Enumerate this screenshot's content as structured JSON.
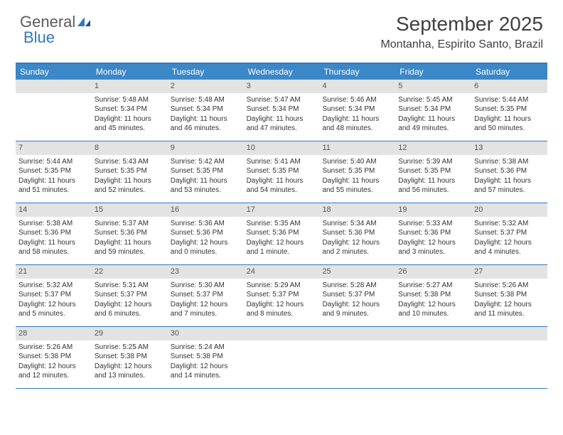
{
  "brand": {
    "word1": "General",
    "word2": "Blue"
  },
  "title": "September 2025",
  "location": "Montanha, Espirito Santo, Brazil",
  "colors": {
    "header_bar": "#3b87c8",
    "border": "#2e78c0",
    "daynum_bg": "#e3e3e3",
    "text": "#333333",
    "title_text": "#404040"
  },
  "days_of_week": [
    "Sunday",
    "Monday",
    "Tuesday",
    "Wednesday",
    "Thursday",
    "Friday",
    "Saturday"
  ],
  "weeks": [
    [
      null,
      {
        "n": "1",
        "sr": "Sunrise: 5:48 AM",
        "ss": "Sunset: 5:34 PM",
        "d1": "Daylight: 11 hours",
        "d2": "and 45 minutes."
      },
      {
        "n": "2",
        "sr": "Sunrise: 5:48 AM",
        "ss": "Sunset: 5:34 PM",
        "d1": "Daylight: 11 hours",
        "d2": "and 46 minutes."
      },
      {
        "n": "3",
        "sr": "Sunrise: 5:47 AM",
        "ss": "Sunset: 5:34 PM",
        "d1": "Daylight: 11 hours",
        "d2": "and 47 minutes."
      },
      {
        "n": "4",
        "sr": "Sunrise: 5:46 AM",
        "ss": "Sunset: 5:34 PM",
        "d1": "Daylight: 11 hours",
        "d2": "and 48 minutes."
      },
      {
        "n": "5",
        "sr": "Sunrise: 5:45 AM",
        "ss": "Sunset: 5:34 PM",
        "d1": "Daylight: 11 hours",
        "d2": "and 49 minutes."
      },
      {
        "n": "6",
        "sr": "Sunrise: 5:44 AM",
        "ss": "Sunset: 5:35 PM",
        "d1": "Daylight: 11 hours",
        "d2": "and 50 minutes."
      }
    ],
    [
      {
        "n": "7",
        "sr": "Sunrise: 5:44 AM",
        "ss": "Sunset: 5:35 PM",
        "d1": "Daylight: 11 hours",
        "d2": "and 51 minutes."
      },
      {
        "n": "8",
        "sr": "Sunrise: 5:43 AM",
        "ss": "Sunset: 5:35 PM",
        "d1": "Daylight: 11 hours",
        "d2": "and 52 minutes."
      },
      {
        "n": "9",
        "sr": "Sunrise: 5:42 AM",
        "ss": "Sunset: 5:35 PM",
        "d1": "Daylight: 11 hours",
        "d2": "and 53 minutes."
      },
      {
        "n": "10",
        "sr": "Sunrise: 5:41 AM",
        "ss": "Sunset: 5:35 PM",
        "d1": "Daylight: 11 hours",
        "d2": "and 54 minutes."
      },
      {
        "n": "11",
        "sr": "Sunrise: 5:40 AM",
        "ss": "Sunset: 5:35 PM",
        "d1": "Daylight: 11 hours",
        "d2": "and 55 minutes."
      },
      {
        "n": "12",
        "sr": "Sunrise: 5:39 AM",
        "ss": "Sunset: 5:35 PM",
        "d1": "Daylight: 11 hours",
        "d2": "and 56 minutes."
      },
      {
        "n": "13",
        "sr": "Sunrise: 5:38 AM",
        "ss": "Sunset: 5:36 PM",
        "d1": "Daylight: 11 hours",
        "d2": "and 57 minutes."
      }
    ],
    [
      {
        "n": "14",
        "sr": "Sunrise: 5:38 AM",
        "ss": "Sunset: 5:36 PM",
        "d1": "Daylight: 11 hours",
        "d2": "and 58 minutes."
      },
      {
        "n": "15",
        "sr": "Sunrise: 5:37 AM",
        "ss": "Sunset: 5:36 PM",
        "d1": "Daylight: 11 hours",
        "d2": "and 59 minutes."
      },
      {
        "n": "16",
        "sr": "Sunrise: 5:36 AM",
        "ss": "Sunset: 5:36 PM",
        "d1": "Daylight: 12 hours",
        "d2": "and 0 minutes."
      },
      {
        "n": "17",
        "sr": "Sunrise: 5:35 AM",
        "ss": "Sunset: 5:36 PM",
        "d1": "Daylight: 12 hours",
        "d2": "and 1 minute."
      },
      {
        "n": "18",
        "sr": "Sunrise: 5:34 AM",
        "ss": "Sunset: 5:36 PM",
        "d1": "Daylight: 12 hours",
        "d2": "and 2 minutes."
      },
      {
        "n": "19",
        "sr": "Sunrise: 5:33 AM",
        "ss": "Sunset: 5:36 PM",
        "d1": "Daylight: 12 hours",
        "d2": "and 3 minutes."
      },
      {
        "n": "20",
        "sr": "Sunrise: 5:32 AM",
        "ss": "Sunset: 5:37 PM",
        "d1": "Daylight: 12 hours",
        "d2": "and 4 minutes."
      }
    ],
    [
      {
        "n": "21",
        "sr": "Sunrise: 5:32 AM",
        "ss": "Sunset: 5:37 PM",
        "d1": "Daylight: 12 hours",
        "d2": "and 5 minutes."
      },
      {
        "n": "22",
        "sr": "Sunrise: 5:31 AM",
        "ss": "Sunset: 5:37 PM",
        "d1": "Daylight: 12 hours",
        "d2": "and 6 minutes."
      },
      {
        "n": "23",
        "sr": "Sunrise: 5:30 AM",
        "ss": "Sunset: 5:37 PM",
        "d1": "Daylight: 12 hours",
        "d2": "and 7 minutes."
      },
      {
        "n": "24",
        "sr": "Sunrise: 5:29 AM",
        "ss": "Sunset: 5:37 PM",
        "d1": "Daylight: 12 hours",
        "d2": "and 8 minutes."
      },
      {
        "n": "25",
        "sr": "Sunrise: 5:28 AM",
        "ss": "Sunset: 5:37 PM",
        "d1": "Daylight: 12 hours",
        "d2": "and 9 minutes."
      },
      {
        "n": "26",
        "sr": "Sunrise: 5:27 AM",
        "ss": "Sunset: 5:38 PM",
        "d1": "Daylight: 12 hours",
        "d2": "and 10 minutes."
      },
      {
        "n": "27",
        "sr": "Sunrise: 5:26 AM",
        "ss": "Sunset: 5:38 PM",
        "d1": "Daylight: 12 hours",
        "d2": "and 11 minutes."
      }
    ],
    [
      {
        "n": "28",
        "sr": "Sunrise: 5:26 AM",
        "ss": "Sunset: 5:38 PM",
        "d1": "Daylight: 12 hours",
        "d2": "and 12 minutes."
      },
      {
        "n": "29",
        "sr": "Sunrise: 5:25 AM",
        "ss": "Sunset: 5:38 PM",
        "d1": "Daylight: 12 hours",
        "d2": "and 13 minutes."
      },
      {
        "n": "30",
        "sr": "Sunrise: 5:24 AM",
        "ss": "Sunset: 5:38 PM",
        "d1": "Daylight: 12 hours",
        "d2": "and 14 minutes."
      },
      null,
      null,
      null,
      null
    ]
  ]
}
